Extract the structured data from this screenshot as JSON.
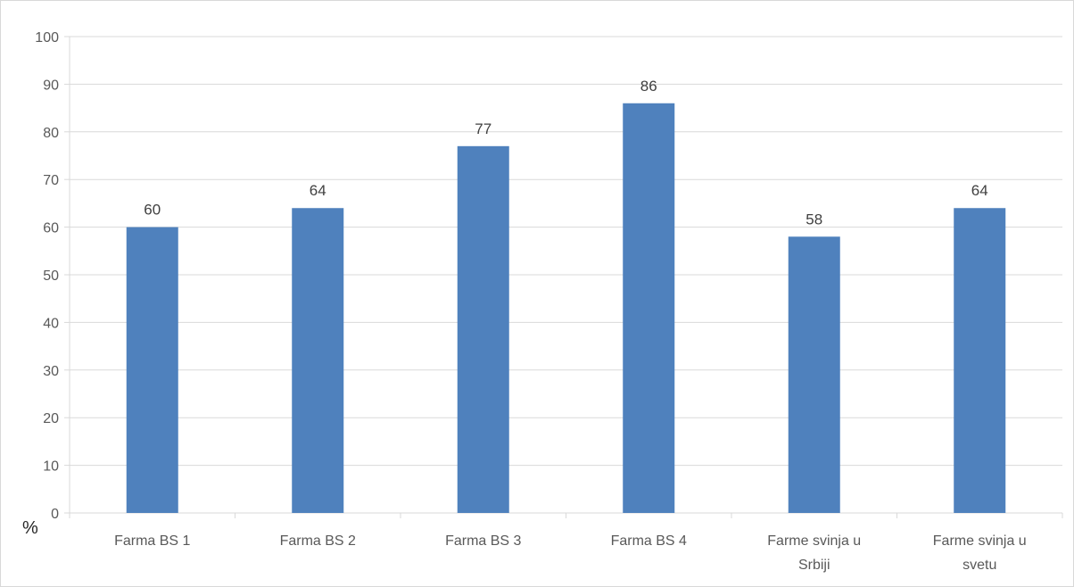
{
  "chart_data": {
    "type": "bar",
    "categories": [
      [
        "Farma BS 1"
      ],
      [
        "Farma BS 2"
      ],
      [
        "Farma BS 3"
      ],
      [
        "Farma BS 4"
      ],
      [
        "Farme svinja u",
        "Srbiji"
      ],
      [
        "Farme svinja u",
        "svetu"
      ]
    ],
    "values": [
      60,
      64,
      77,
      86,
      58,
      64
    ],
    "data_labels": [
      "60",
      "64",
      "77",
      "86",
      "58",
      "64"
    ],
    "ylabel": "%",
    "ylim": [
      0,
      100
    ],
    "yticks": [
      0,
      10,
      20,
      30,
      40,
      50,
      60,
      70,
      80,
      90,
      100
    ],
    "grid": true,
    "bar_color": "#4f81bd",
    "grid_color": "#d9d9d9"
  }
}
